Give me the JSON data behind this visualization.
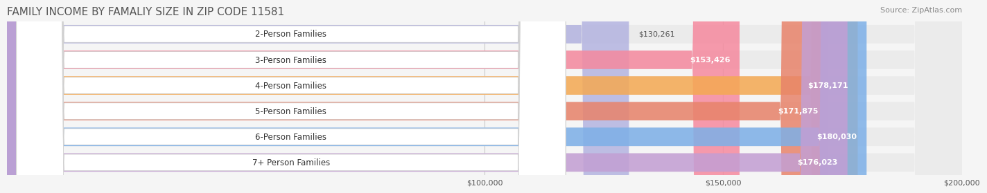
{
  "title": "FAMILY INCOME BY FAMALIY SIZE IN ZIP CODE 11581",
  "source": "Source: ZipAtlas.com",
  "categories": [
    "2-Person Families",
    "3-Person Families",
    "4-Person Families",
    "5-Person Families",
    "6-Person Families",
    "7+ Person Families"
  ],
  "values": [
    130261,
    153426,
    178171,
    171875,
    180030,
    176023
  ],
  "labels": [
    "$130,261",
    "$153,426",
    "$178,171",
    "$171,875",
    "$180,030",
    "$176,023"
  ],
  "colors": [
    "#b3b3e0",
    "#f5899e",
    "#f5a952",
    "#e8836a",
    "#7db0e8",
    "#c39fd4"
  ],
  "xmin": 0,
  "xmax": 200000,
  "xticks": [
    100000,
    150000,
    200000
  ],
  "xtick_labels": [
    "$100,000",
    "$150,000",
    "$200,000"
  ],
  "bg_color": "#f5f5f5",
  "bar_bg_color": "#ebebeb",
  "title_fontsize": 11,
  "label_fontsize": 8.5,
  "source_fontsize": 8
}
